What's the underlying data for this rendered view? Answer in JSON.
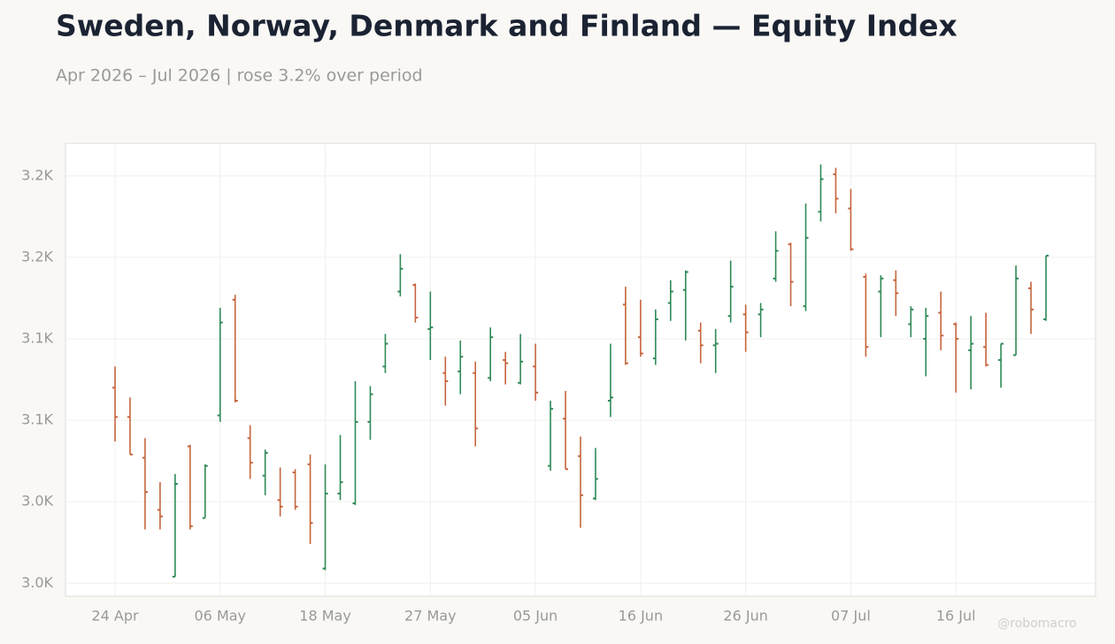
{
  "chart_data": {
    "type": "ohlc",
    "title": "Sweden, Norway, Denmark and Finland — Equity Index",
    "subtitle": "Apr 2026 – Jul 2026 | rose 3.2% over period",
    "watermark": "@robomacro",
    "categories": [
      "24 Apr",
      null,
      null,
      null,
      null,
      null,
      null,
      "06 May",
      null,
      null,
      null,
      null,
      null,
      null,
      "18 May",
      null,
      null,
      null,
      null,
      null,
      null,
      "27 May",
      null,
      null,
      null,
      null,
      null,
      null,
      "05 Jun",
      null,
      null,
      null,
      null,
      null,
      null,
      "16 Jun",
      null,
      null,
      null,
      null,
      null,
      null,
      "26 Jun",
      null,
      null,
      null,
      null,
      null,
      null,
      "07 Jul",
      null,
      null,
      null,
      null,
      null,
      null,
      "16 Jul",
      null,
      null,
      null,
      null,
      null,
      null
    ],
    "open": [
      3070,
      3052,
      3027,
      2995,
      2954,
      3034,
      2990,
      3053,
      3124,
      3039,
      3016,
      3001,
      3018,
      3023,
      2959,
      3005,
      2999,
      3049,
      3083,
      3129,
      3133,
      3106,
      3079,
      3080,
      3079,
      3076,
      3087,
      3073,
      3083,
      3022,
      3051,
      3028,
      3002,
      3062,
      3121,
      3101,
      3088,
      3122,
      3130,
      3105,
      3096,
      3114,
      3115,
      3115,
      3137,
      3158,
      3120,
      3178,
      3201,
      3180,
      3138,
      3129,
      3136,
      3109,
      3100,
      3116,
      3109,
      3093,
      3095,
      3087,
      3090,
      3131,
      3112
    ],
    "high": [
      3083,
      3064,
      3039,
      3012,
      3017,
      3035,
      3023,
      3119,
      3127,
      3047,
      3032,
      3021,
      3020,
      3029,
      3023,
      3041,
      3074,
      3071,
      3103,
      3152,
      3134,
      3129,
      3089,
      3099,
      3086,
      3107,
      3092,
      3103,
      3097,
      3062,
      3068,
      3040,
      3033,
      3097,
      3132,
      3124,
      3118,
      3136,
      3142,
      3110,
      3106,
      3148,
      3121,
      3122,
      3166,
      3159,
      3183,
      3207,
      3205,
      3192,
      3140,
      3139,
      3142,
      3120,
      3119,
      3129,
      3110,
      3114,
      3116,
      3097,
      3145,
      3135,
      3151
    ],
    "low": [
      3037,
      3029,
      2983,
      2983,
      2954,
      2983,
      2990,
      3049,
      3061,
      3014,
      3004,
      2991,
      2995,
      2974,
      2958,
      3001,
      2998,
      3038,
      3079,
      3126,
      3110,
      3087,
      3059,
      3066,
      3034,
      3074,
      3072,
      3072,
      3062,
      3019,
      3020,
      2984,
      3001,
      3052,
      3084,
      3089,
      3084,
      3111,
      3099,
      3085,
      3079,
      3110,
      3092,
      3101,
      3135,
      3120,
      3117,
      3172,
      3177,
      3154,
      3089,
      3101,
      3114,
      3101,
      3077,
      3093,
      3067,
      3069,
      3083,
      3070,
      3090,
      3103,
      3111
    ],
    "close": [
      3052,
      3029,
      3006,
      2991,
      3011,
      2985,
      3022,
      3110,
      3062,
      3024,
      3030,
      2997,
      2997,
      2987,
      3005,
      3012,
      3049,
      3066,
      3097,
      3143,
      3113,
      3107,
      3074,
      3089,
      3045,
      3101,
      3085,
      3086,
      3067,
      3057,
      3020,
      3004,
      3014,
      3064,
      3085,
      3091,
      3112,
      3129,
      3141,
      3096,
      3097,
      3132,
      3104,
      3118,
      3154,
      3135,
      3162,
      3198,
      3186,
      3155,
      3095,
      3137,
      3128,
      3118,
      3114,
      3102,
      3100,
      3097,
      3084,
      3097,
      3137,
      3118,
      3151
    ],
    "up_color": "#2f8a57",
    "down_color": "#c5653d",
    "xlim": [
      -3.3,
      65.3
    ],
    "ylim": [
      2942,
      3220
    ],
    "yticks": [
      {
        "value": 2950,
        "label": "3.0K"
      },
      {
        "value": 3000,
        "label": "3.0K"
      },
      {
        "value": 3050,
        "label": "3.1K"
      },
      {
        "value": 3100,
        "label": "3.1K"
      },
      {
        "value": 3150,
        "label": "3.2K"
      },
      {
        "value": 3200,
        "label": "3.2K"
      }
    ],
    "grid": true
  }
}
